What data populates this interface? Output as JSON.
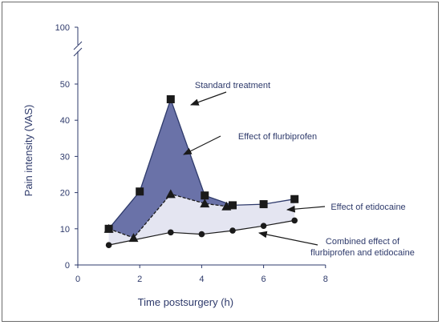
{
  "chart_data": {
    "type": "line",
    "title": "",
    "xlabel": "Time postsurgery (h)",
    "ylabel": "Pain intensity (VAS)",
    "xlim": [
      0,
      8
    ],
    "ylim": [
      0,
      50
    ],
    "y_break_top_tick": 100,
    "x_ticks": [
      0,
      2,
      4,
      6,
      8
    ],
    "y_ticks": [
      0,
      10,
      20,
      30,
      40,
      50
    ],
    "grid": false,
    "legend": "none",
    "series": [
      {
        "marker": "square",
        "x": [
          1,
          2,
          3,
          4.1,
          5,
          6,
          7
        ],
        "y": [
          10,
          20.3,
          45.8,
          19.2,
          16.5,
          16.8,
          18.2
        ]
      },
      {
        "marker": "triangle",
        "x": [
          1,
          1.8,
          3,
          4.1,
          4.8
        ],
        "y": [
          10,
          7.5,
          19.6,
          17,
          16.2
        ]
      },
      {
        "marker": "circle",
        "x": [
          1,
          3,
          4,
          5,
          6,
          7
        ],
        "y": [
          5.5,
          9,
          8.5,
          9.5,
          10.8,
          12.3
        ]
      }
    ],
    "annotations": [
      {
        "id": "standard",
        "lines": [
          "Standard treatment"
        ]
      },
      {
        "id": "flurbiprofen",
        "lines": [
          "Effect of flurbiprofen"
        ]
      },
      {
        "id": "etidocaine",
        "lines": [
          "Effect of etidocaine"
        ]
      },
      {
        "id": "combined",
        "lines": [
          "Combined effect of",
          "flurbiprofen and etidocaine"
        ]
      }
    ],
    "colors": {
      "axis": "#2e3a6b",
      "dark_fill": "#6a72a8",
      "light_fill": "#e4e5f1",
      "marker": "#1a1a1a"
    }
  }
}
